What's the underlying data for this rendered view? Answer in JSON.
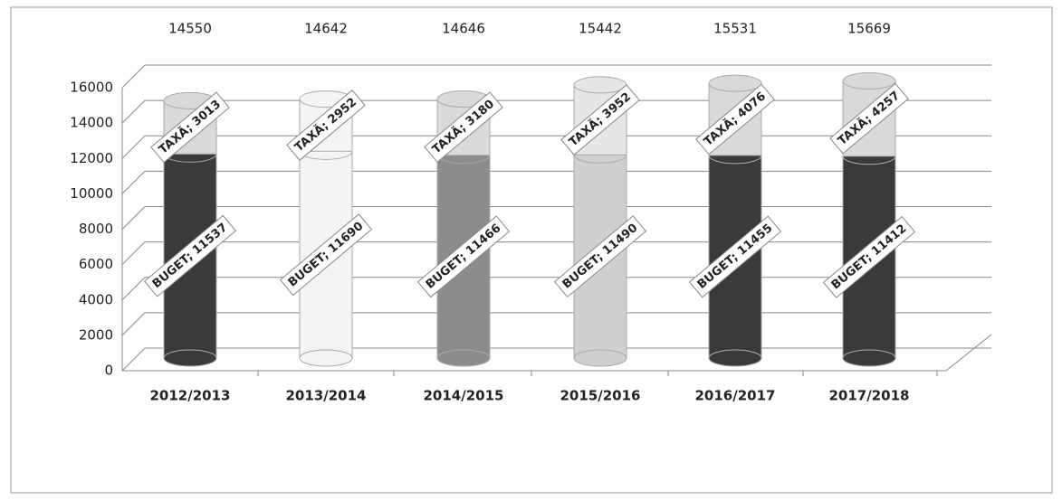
{
  "chart_data": {
    "type": "bar3d_stacked",
    "categories": [
      "2012/2013",
      "2013/2014",
      "2014/2015",
      "2015/2016",
      "2016/2017",
      "2017/2018"
    ],
    "series": [
      {
        "name": "BUGET",
        "colors": [
          "#3a3a3a",
          "#f4f4f4",
          "#8c8c8c",
          "#cfcfcf",
          "#3a3a3a",
          "#3a3a3a"
        ],
        "values": [
          11537,
          11690,
          11466,
          11490,
          11455,
          11412
        ],
        "value_labels": [
          "BUGET; 11537",
          "BUGET; 11690",
          "BUGET; 11466",
          "BUGET; 11490",
          "BUGET; 11455",
          "BUGET; 11412"
        ]
      },
      {
        "name": "TAXĂ",
        "colors": [
          "#d9d9d9",
          "#f4f4f4",
          "#dadada",
          "#e6e6e6",
          "#d9d9d9",
          "#d9d9d9"
        ],
        "values": [
          3013,
          2952,
          3180,
          3952,
          4076,
          4257
        ],
        "value_labels": [
          "TAXĂ; 3013",
          "TAXĂ; 2952",
          "TAXĂ; 3180",
          "TAXĂ; 3952",
          "TAXĂ; 4076",
          "TAXĂ; 4257"
        ]
      }
    ],
    "totals": [
      14550,
      14642,
      14646,
      15442,
      15531,
      15669
    ],
    "ylim": [
      0,
      16000
    ],
    "yticks": [
      0,
      2000,
      4000,
      6000,
      8000,
      10000,
      12000,
      14000,
      16000
    ],
    "grid": true
  }
}
